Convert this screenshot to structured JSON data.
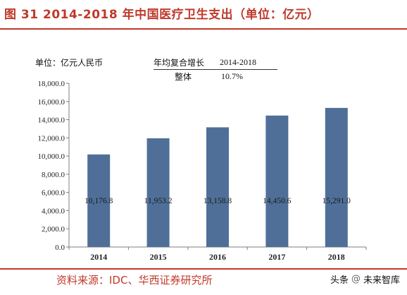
{
  "title": "图 31 2014-2018 年中国医疗卫生支出（单位：亿元）",
  "unit_label": "单位：亿元人民币",
  "cagr_table": {
    "header_label": "年均复合增长",
    "header_value": "2014-2018",
    "row_label": "整体",
    "row_value": "10.7%"
  },
  "source": "资料来源：IDC、华西证券研究所",
  "watermark": {
    "platform": "头条",
    "separator": "@",
    "account": "未来智库"
  },
  "colors": {
    "bar": "#4f6f98",
    "title": "#c0392b",
    "axis": "#7f7f7f"
  },
  "chart_data": {
    "type": "bar",
    "categories": [
      "2014",
      "2015",
      "2016",
      "2017",
      "2018"
    ],
    "values": [
      10176.8,
      11953.2,
      13158.8,
      14450.6,
      15291.0
    ],
    "data_labels": [
      "10,176.8",
      "11,953.2",
      "13,158.8",
      "14,450.6",
      "15,291.0"
    ],
    "yticks": [
      "0.0",
      "2,000.0",
      "4,000.0",
      "6,000.0",
      "8,000.0",
      "10,000.0",
      "12,000.0",
      "14,000.0",
      "16,000.0",
      "18,000.0"
    ],
    "ylim": [
      0,
      18000
    ],
    "ytick_step": 2000,
    "grid": false
  }
}
